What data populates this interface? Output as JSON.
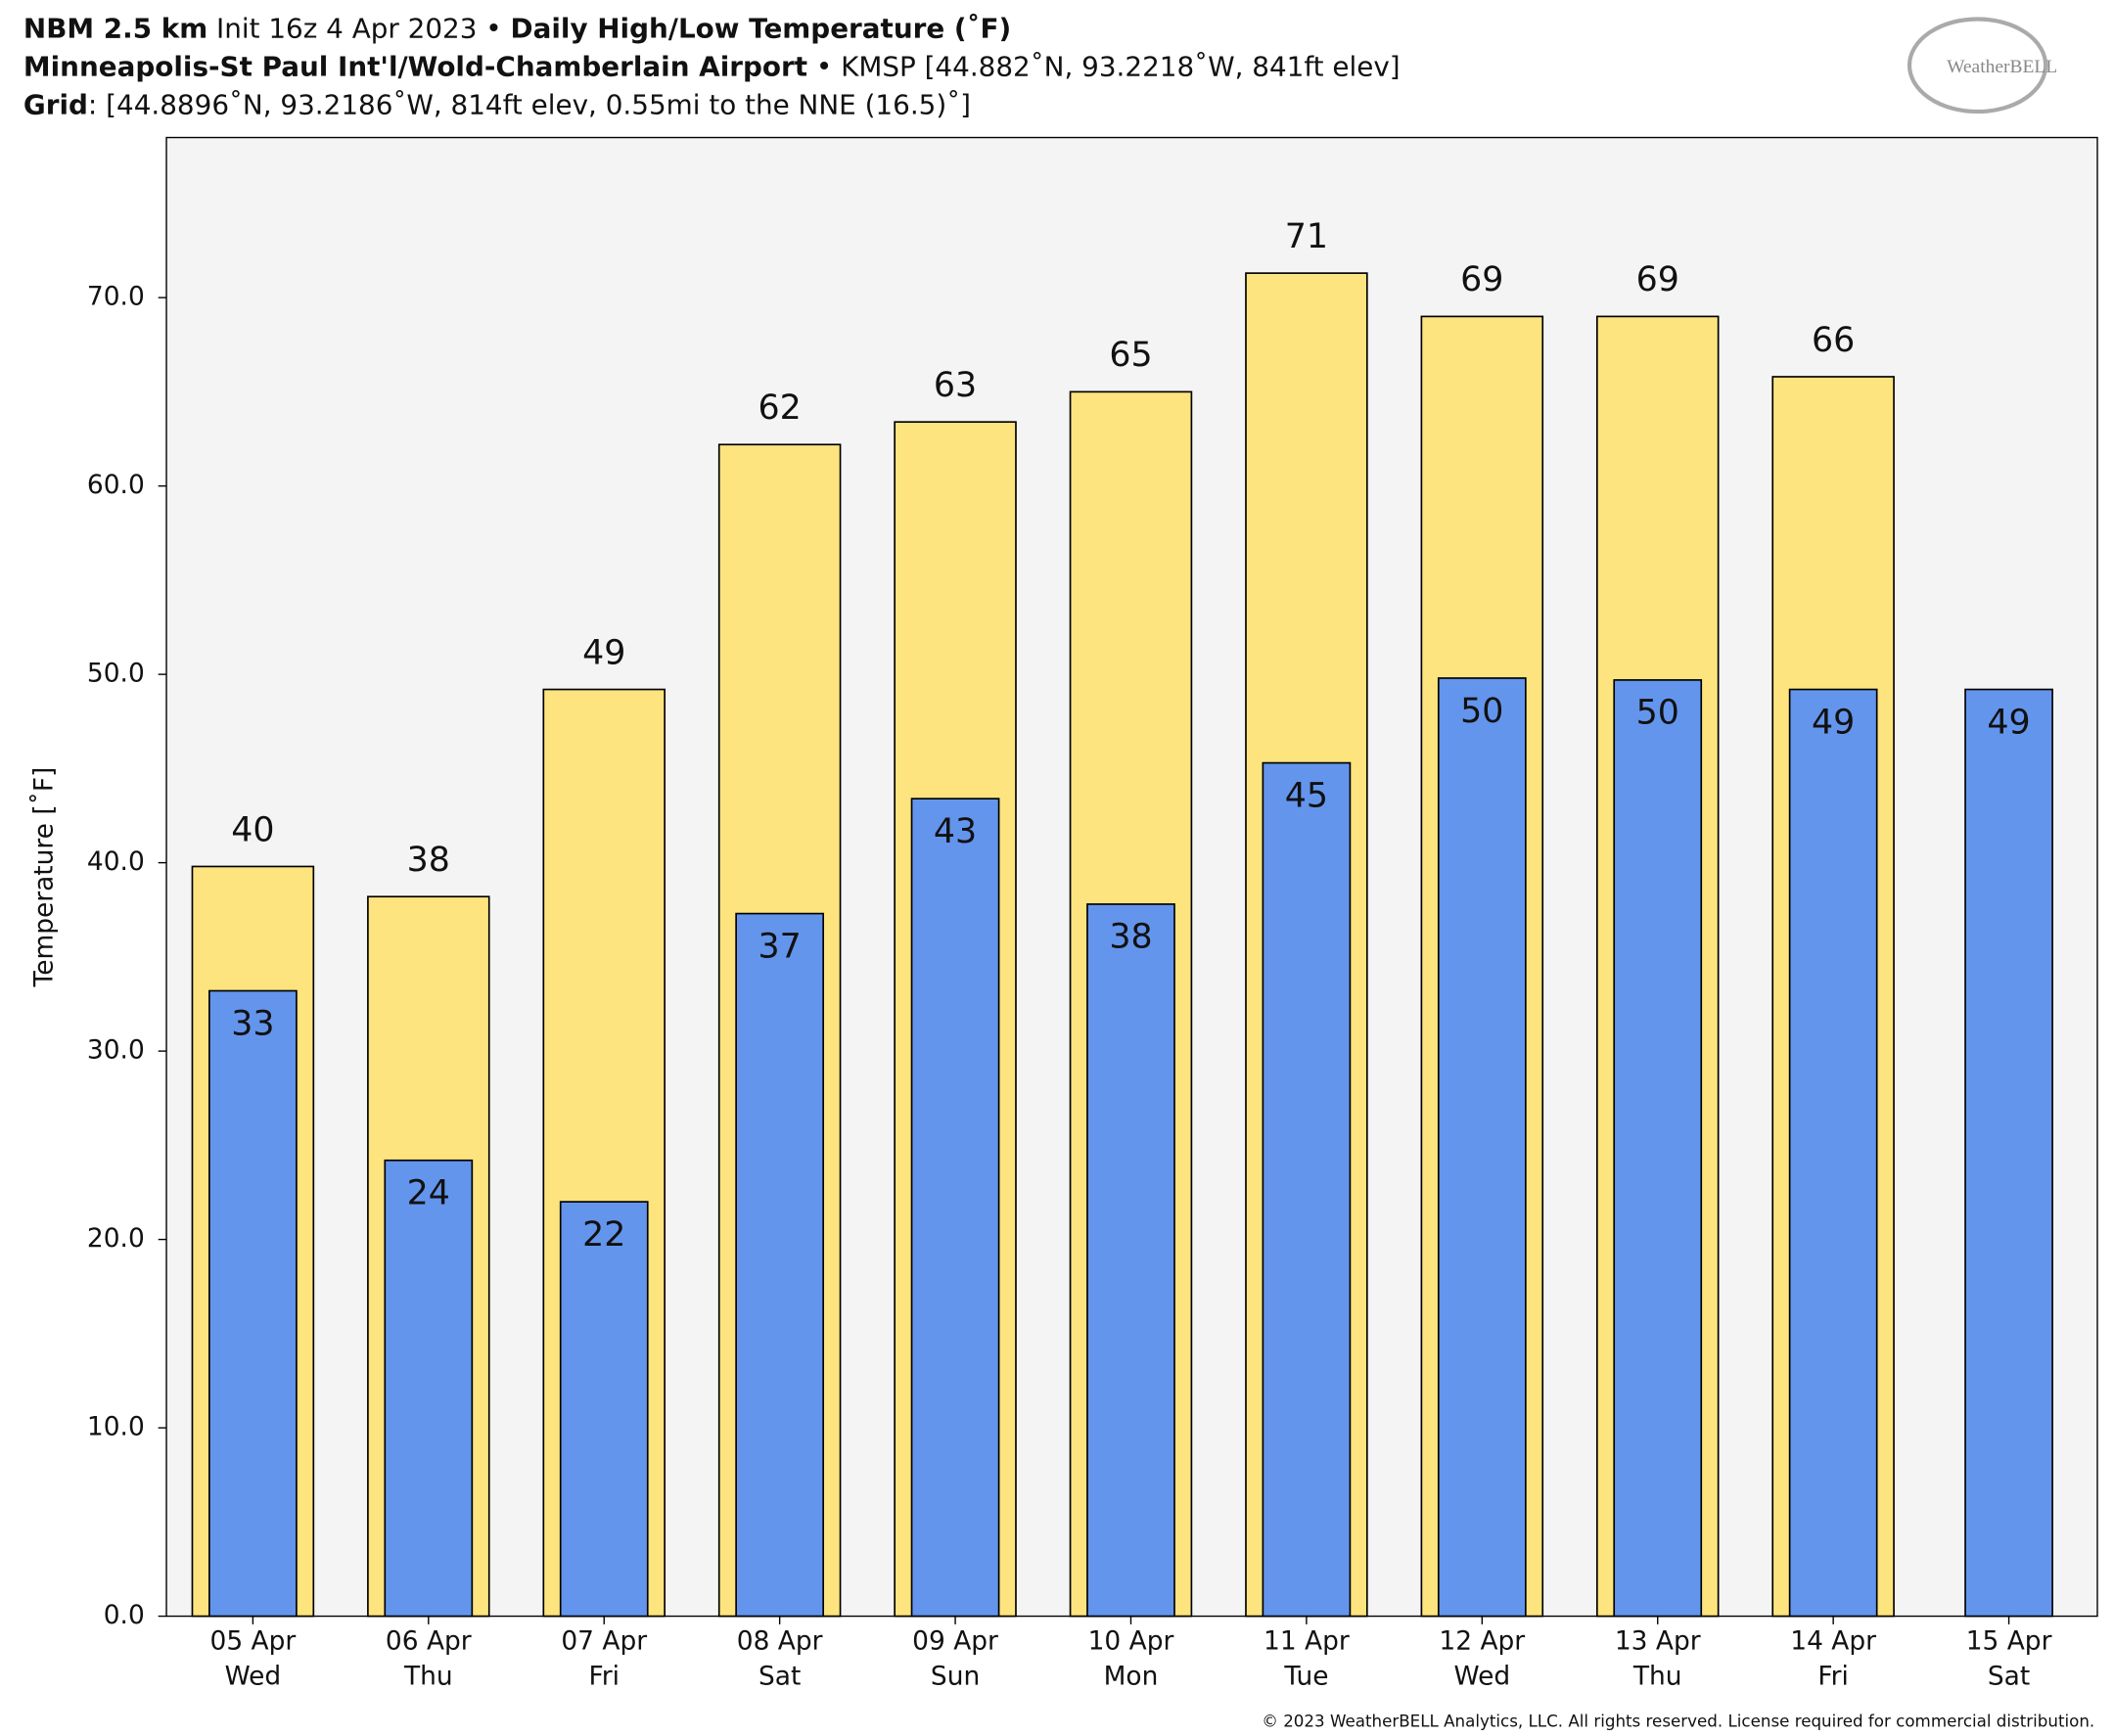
{
  "chart_data": {
    "type": "bar",
    "title_lines": [
      [
        {
          "text": "NBM 2.5 km",
          "bold": true
        },
        {
          "text": " Init 16z 4 Apr 2023 • ",
          "bold": false
        },
        {
          "text": "Daily High/Low Temperature (˚F)",
          "bold": true
        }
      ],
      [
        {
          "text": "Minneapolis-St Paul Int'l/Wold-Chamberlain Airport",
          "bold": true
        },
        {
          "text": " • KMSP [44.882˚N, 93.2218˚W, 841ft elev]",
          "bold": false
        }
      ],
      [
        {
          "text": "Grid",
          "bold": true
        },
        {
          "text": ": [44.8896˚N, 93.2186˚W, 814ft elev, 0.55mi to the NNE (16.5)˚]",
          "bold": false
        }
      ]
    ],
    "logo": "WeatherBELL",
    "copyright": "© 2023 WeatherBELL Analytics, LLC. All rights reserved. License required for commercial distribution.",
    "ylabel": "Temperature [˚F]",
    "categories": [
      "05 Apr",
      "06 Apr",
      "07 Apr",
      "08 Apr",
      "09 Apr",
      "10 Apr",
      "11 Apr",
      "12 Apr",
      "13 Apr",
      "14 Apr",
      "15 Apr"
    ],
    "category_sublabels": [
      "Wed",
      "Thu",
      "Fri",
      "Sat",
      "Sun",
      "Mon",
      "Tue",
      "Wed",
      "Thu",
      "Fri",
      "Sat"
    ],
    "series": [
      {
        "color": "#fde47f",
        "values": [
          39.8,
          38.2,
          49.2,
          62.2,
          63.4,
          65,
          71.3,
          69,
          69,
          65.8,
          null
        ],
        "value_labels": [
          "40",
          "38",
          "49",
          "62",
          "63",
          "65",
          "71",
          "69",
          "69",
          "66",
          null
        ]
      },
      {
        "color": "#6495ed",
        "values": [
          33.2,
          24.2,
          22,
          37.3,
          43.4,
          37.8,
          45.3,
          49.8,
          49.7,
          49.2,
          49.2
        ],
        "value_labels": [
          "33",
          "24",
          "22",
          "37",
          "43",
          "38",
          "45",
          "50",
          "50",
          "49",
          "49"
        ]
      }
    ],
    "ylim": [
      0,
      78.5
    ],
    "yticks": [
      {
        "value": 0,
        "label": "0.0"
      },
      {
        "value": 10,
        "label": "10.0"
      },
      {
        "value": 20,
        "label": "20.0"
      },
      {
        "value": 30,
        "label": "30.0"
      },
      {
        "value": 40,
        "label": "40.0"
      },
      {
        "value": 50,
        "label": "50.0"
      },
      {
        "value": 60,
        "label": "60.0"
      },
      {
        "value": 70,
        "label": "70.0"
      }
    ]
  }
}
